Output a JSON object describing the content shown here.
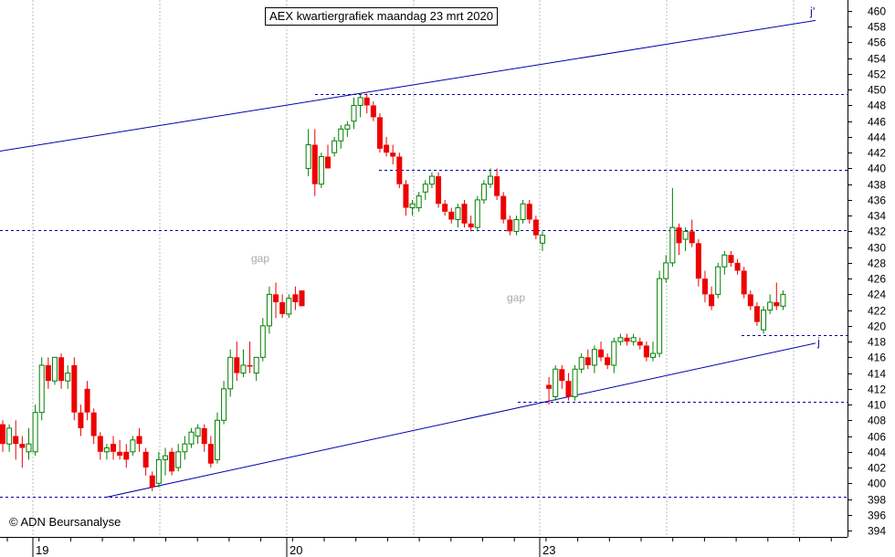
{
  "title": "AEX kwartiergrafiek maandag 23 mrt 2020",
  "copyright": "© ADN Beursanalyse",
  "annotations": {
    "gap_labels": [
      "gap",
      "gap"
    ],
    "upper_trendline_label": "j'",
    "lower_trendline_label": "j"
  },
  "colors": {
    "up_candle": "#008000",
    "down_candle": "#ee0000",
    "trendline": "#0000aa",
    "support_resistance": "#0000aa",
    "grid": "#bbbbbb"
  },
  "chart_data": {
    "type": "candlestick",
    "title": "AEX kwartiergrafiek maandag 23 mrt 2020",
    "y_axis": {
      "side": "right",
      "min": 394,
      "max": 460,
      "tick_step": 2
    },
    "x_tick_labels": [
      "19",
      "20",
      "23"
    ],
    "grid": true,
    "horizontal_levels": [
      449.5,
      439.8,
      432.2,
      418.8,
      410.4,
      398.3
    ],
    "trendlines": [
      {
        "label": "j'",
        "from": [
          0,
          442.2
        ],
        "to": [
          893,
          458.8
        ]
      },
      {
        "label": "j",
        "from": [
          115,
          398.2
        ],
        "to": [
          893,
          417.8
        ]
      }
    ],
    "candles": [
      {
        "i": 0,
        "o": 407.5,
        "h": 408,
        "l": 404,
        "c": 405,
        "dir": "down"
      },
      {
        "i": 1,
        "o": 405,
        "h": 407.5,
        "l": 404,
        "c": 407,
        "dir": "up"
      },
      {
        "i": 2,
        "o": 406,
        "h": 408,
        "l": 403,
        "c": 405,
        "dir": "down"
      },
      {
        "i": 3,
        "o": 405,
        "h": 406,
        "l": 402,
        "c": 404.5,
        "dir": "down"
      },
      {
        "i": 4,
        "o": 404,
        "h": 407,
        "l": 403,
        "c": 405,
        "dir": "up"
      },
      {
        "i": 5,
        "o": 404,
        "h": 410,
        "l": 403.5,
        "c": 409,
        "dir": "up"
      },
      {
        "i": 6,
        "o": 409,
        "h": 416,
        "l": 408,
        "c": 415,
        "dir": "up"
      },
      {
        "i": 7,
        "o": 415,
        "h": 416,
        "l": 412,
        "c": 413,
        "dir": "down"
      },
      {
        "i": 8,
        "o": 413,
        "h": 416,
        "l": 412.5,
        "c": 416,
        "dir": "up"
      },
      {
        "i": 9,
        "o": 416,
        "h": 416.5,
        "l": 412,
        "c": 413,
        "dir": "down"
      },
      {
        "i": 10,
        "o": 413,
        "h": 415,
        "l": 412,
        "c": 414,
        "dir": "up"
      },
      {
        "i": 11,
        "o": 415,
        "h": 416,
        "l": 408,
        "c": 409,
        "dir": "down"
      },
      {
        "i": 12,
        "o": 409,
        "h": 410,
        "l": 406,
        "c": 407,
        "dir": "down"
      },
      {
        "i": 13,
        "o": 412,
        "h": 413,
        "l": 408,
        "c": 409,
        "dir": "down"
      },
      {
        "i": 14,
        "o": 409,
        "h": 409.5,
        "l": 405,
        "c": 406,
        "dir": "down"
      },
      {
        "i": 15,
        "o": 406,
        "h": 406.5,
        "l": 403,
        "c": 404,
        "dir": "down"
      },
      {
        "i": 16,
        "o": 404,
        "h": 405,
        "l": 403,
        "c": 404.5,
        "dir": "up"
      },
      {
        "i": 17,
        "o": 405,
        "h": 406,
        "l": 403,
        "c": 404,
        "dir": "down"
      },
      {
        "i": 18,
        "o": 404,
        "h": 405.5,
        "l": 403,
        "c": 403.5,
        "dir": "down"
      },
      {
        "i": 19,
        "o": 404,
        "h": 405,
        "l": 402,
        "c": 403,
        "dir": "down"
      },
      {
        "i": 20,
        "o": 404,
        "h": 406,
        "l": 403.5,
        "c": 405.5,
        "dir": "up"
      },
      {
        "i": 21,
        "o": 406,
        "h": 407,
        "l": 404,
        "c": 405,
        "dir": "down"
      },
      {
        "i": 22,
        "o": 404,
        "h": 404.5,
        "l": 401,
        "c": 402,
        "dir": "down"
      },
      {
        "i": 23,
        "o": 401,
        "h": 401.5,
        "l": 399,
        "c": 399.5,
        "dir": "down"
      },
      {
        "i": 24,
        "o": 400,
        "h": 404,
        "l": 399.5,
        "c": 403,
        "dir": "up"
      },
      {
        "i": 25,
        "o": 403,
        "h": 404.5,
        "l": 401,
        "c": 403.5,
        "dir": "up"
      },
      {
        "i": 26,
        "o": 404,
        "h": 404.5,
        "l": 401,
        "c": 401.5,
        "dir": "down"
      },
      {
        "i": 27,
        "o": 402,
        "h": 405,
        "l": 401.5,
        "c": 404,
        "dir": "up"
      },
      {
        "i": 28,
        "o": 404,
        "h": 406,
        "l": 403,
        "c": 405,
        "dir": "up"
      },
      {
        "i": 29,
        "o": 405,
        "h": 407,
        "l": 404.5,
        "c": 406.5,
        "dir": "up"
      },
      {
        "i": 30,
        "o": 406,
        "h": 407.5,
        "l": 405,
        "c": 407,
        "dir": "up"
      },
      {
        "i": 31,
        "o": 407,
        "h": 407.5,
        "l": 404,
        "c": 405,
        "dir": "down"
      },
      {
        "i": 32,
        "o": 405,
        "h": 406,
        "l": 402,
        "c": 402.5,
        "dir": "down"
      },
      {
        "i": 33,
        "o": 403,
        "h": 409,
        "l": 402.5,
        "c": 408,
        "dir": "up"
      },
      {
        "i": 34,
        "o": 408,
        "h": 413,
        "l": 407.5,
        "c": 412,
        "dir": "up"
      },
      {
        "i": 35,
        "o": 412,
        "h": 417,
        "l": 411,
        "c": 416,
        "dir": "up"
      },
      {
        "i": 36,
        "o": 416,
        "h": 418,
        "l": 413,
        "c": 414,
        "dir": "down"
      },
      {
        "i": 37,
        "o": 414,
        "h": 417,
        "l": 413.5,
        "c": 415,
        "dir": "up"
      },
      {
        "i": 38,
        "o": 415,
        "h": 418,
        "l": 414,
        "c": 415,
        "dir": "down"
      },
      {
        "i": 39,
        "o": 414,
        "h": 416,
        "l": 413,
        "c": 416,
        "dir": "up"
      },
      {
        "i": 40,
        "o": 416,
        "h": 421,
        "l": 415.5,
        "c": 420,
        "dir": "up"
      },
      {
        "i": 41,
        "o": 420,
        "h": 425,
        "l": 419,
        "c": 424,
        "dir": "up"
      },
      {
        "i": 42,
        "o": 424,
        "h": 425.5,
        "l": 421,
        "c": 423,
        "dir": "down"
      },
      {
        "i": 43,
        "o": 423,
        "h": 424,
        "l": 421,
        "c": 421.5,
        "dir": "down"
      },
      {
        "i": 44,
        "o": 421.5,
        "h": 424,
        "l": 421,
        "c": 423.5,
        "dir": "up"
      },
      {
        "i": 45,
        "o": 424,
        "h": 425,
        "l": 422,
        "c": 423,
        "dir": "down"
      },
      {
        "i": 46,
        "o": 424.5,
        "h": 424.5,
        "l": 422.5,
        "c": 422.5,
        "dir": "down"
      },
      {
        "i": 47,
        "o": 440,
        "h": 445,
        "l": 439,
        "c": 443,
        "dir": "up"
      },
      {
        "i": 48,
        "o": 443,
        "h": 445,
        "l": 436.5,
        "c": 438,
        "dir": "down"
      },
      {
        "i": 49,
        "o": 438,
        "h": 442,
        "l": 437.5,
        "c": 441.5,
        "dir": "up"
      },
      {
        "i": 50,
        "o": 441.5,
        "h": 443,
        "l": 440,
        "c": 440,
        "dir": "down"
      },
      {
        "i": 51,
        "o": 442,
        "h": 444,
        "l": 441.5,
        "c": 443.5,
        "dir": "up"
      },
      {
        "i": 52,
        "o": 443.5,
        "h": 445.5,
        "l": 442.5,
        "c": 445,
        "dir": "up"
      },
      {
        "i": 53,
        "o": 445,
        "h": 446,
        "l": 444,
        "c": 445.5,
        "dir": "up"
      },
      {
        "i": 54,
        "o": 446,
        "h": 449,
        "l": 445,
        "c": 448,
        "dir": "up"
      },
      {
        "i": 55,
        "o": 448,
        "h": 449.5,
        "l": 446.5,
        "c": 449,
        "dir": "up"
      },
      {
        "i": 56,
        "o": 449,
        "h": 449.5,
        "l": 447,
        "c": 448,
        "dir": "down"
      },
      {
        "i": 57,
        "o": 448,
        "h": 448.5,
        "l": 446,
        "c": 446.5,
        "dir": "down"
      },
      {
        "i": 58,
        "o": 446.5,
        "h": 447,
        "l": 442,
        "c": 442.5,
        "dir": "down"
      },
      {
        "i": 59,
        "o": 443,
        "h": 444,
        "l": 441.5,
        "c": 442,
        "dir": "down"
      },
      {
        "i": 60,
        "o": 442,
        "h": 443,
        "l": 440.5,
        "c": 441.5,
        "dir": "down"
      },
      {
        "i": 61,
        "o": 441.5,
        "h": 442,
        "l": 437.5,
        "c": 438,
        "dir": "down"
      },
      {
        "i": 62,
        "o": 438,
        "h": 438.5,
        "l": 434,
        "c": 435,
        "dir": "down"
      },
      {
        "i": 63,
        "o": 435,
        "h": 436,
        "l": 434,
        "c": 435.5,
        "dir": "up"
      },
      {
        "i": 64,
        "o": 435,
        "h": 437,
        "l": 434.5,
        "c": 436.5,
        "dir": "up"
      },
      {
        "i": 65,
        "o": 437,
        "h": 438.5,
        "l": 436,
        "c": 438,
        "dir": "up"
      },
      {
        "i": 66,
        "o": 438,
        "h": 439.5,
        "l": 437.5,
        "c": 439,
        "dir": "up"
      },
      {
        "i": 67,
        "o": 439,
        "h": 439.5,
        "l": 435,
        "c": 435.5,
        "dir": "down"
      },
      {
        "i": 68,
        "o": 435.5,
        "h": 436,
        "l": 434,
        "c": 434.5,
        "dir": "down"
      },
      {
        "i": 69,
        "o": 434.5,
        "h": 435,
        "l": 433,
        "c": 433.5,
        "dir": "down"
      },
      {
        "i": 70,
        "o": 433.5,
        "h": 435.5,
        "l": 432.5,
        "c": 435,
        "dir": "up"
      },
      {
        "i": 71,
        "o": 435.5,
        "h": 436,
        "l": 432.5,
        "c": 433,
        "dir": "down"
      },
      {
        "i": 72,
        "o": 433,
        "h": 434,
        "l": 432,
        "c": 432.5,
        "dir": "down"
      },
      {
        "i": 73,
        "o": 432.5,
        "h": 436.5,
        "l": 432,
        "c": 436,
        "dir": "up"
      },
      {
        "i": 74,
        "o": 436,
        "h": 438.5,
        "l": 435.5,
        "c": 438,
        "dir": "up"
      },
      {
        "i": 75,
        "o": 438,
        "h": 440,
        "l": 437.5,
        "c": 439,
        "dir": "up"
      },
      {
        "i": 76,
        "o": 439,
        "h": 440,
        "l": 436,
        "c": 436.5,
        "dir": "down"
      },
      {
        "i": 77,
        "o": 436.5,
        "h": 437,
        "l": 433,
        "c": 433.5,
        "dir": "down"
      },
      {
        "i": 78,
        "o": 433.5,
        "h": 434,
        "l": 431.5,
        "c": 432,
        "dir": "down"
      },
      {
        "i": 79,
        "o": 432,
        "h": 434,
        "l": 431.5,
        "c": 433.5,
        "dir": "up"
      },
      {
        "i": 80,
        "o": 433.5,
        "h": 436,
        "l": 433,
        "c": 435.5,
        "dir": "up"
      },
      {
        "i": 81,
        "o": 435.5,
        "h": 436,
        "l": 433,
        "c": 433.5,
        "dir": "down"
      },
      {
        "i": 82,
        "o": 433.5,
        "h": 434,
        "l": 431,
        "c": 431.5,
        "dir": "down"
      },
      {
        "i": 83,
        "o": 430.5,
        "h": 432,
        "l": 429.5,
        "c": 431.5,
        "dir": "up"
      },
      {
        "i": 84,
        "o": 412,
        "h": 413.5,
        "l": 410,
        "c": 412.5,
        "dir": "down"
      },
      {
        "i": 85,
        "o": 411,
        "h": 415,
        "l": 410.5,
        "c": 414.5,
        "dir": "up"
      },
      {
        "i": 86,
        "o": 414.5,
        "h": 415,
        "l": 412,
        "c": 413,
        "dir": "down"
      },
      {
        "i": 87,
        "o": 413,
        "h": 414,
        "l": 410.5,
        "c": 411,
        "dir": "down"
      },
      {
        "i": 88,
        "o": 411,
        "h": 415,
        "l": 410.5,
        "c": 414.5,
        "dir": "up"
      },
      {
        "i": 89,
        "o": 414.5,
        "h": 416.5,
        "l": 414,
        "c": 416,
        "dir": "up"
      },
      {
        "i": 90,
        "o": 416,
        "h": 417,
        "l": 414.5,
        "c": 415,
        "dir": "down"
      },
      {
        "i": 91,
        "o": 415,
        "h": 417.5,
        "l": 414,
        "c": 417,
        "dir": "up"
      },
      {
        "i": 92,
        "o": 417,
        "h": 418,
        "l": 415.5,
        "c": 416,
        "dir": "down"
      },
      {
        "i": 93,
        "o": 416,
        "h": 416.5,
        "l": 414.5,
        "c": 415,
        "dir": "down"
      },
      {
        "i": 94,
        "o": 415,
        "h": 418.5,
        "l": 414,
        "c": 418,
        "dir": "up"
      },
      {
        "i": 95,
        "o": 418,
        "h": 419,
        "l": 417.5,
        "c": 418.5,
        "dir": "up"
      },
      {
        "i": 96,
        "o": 418.5,
        "h": 419,
        "l": 417.5,
        "c": 418,
        "dir": "down"
      },
      {
        "i": 97,
        "o": 418,
        "h": 419,
        "l": 417.5,
        "c": 418.5,
        "dir": "up"
      },
      {
        "i": 98,
        "o": 418,
        "h": 418.5,
        "l": 417,
        "c": 417.5,
        "dir": "down"
      },
      {
        "i": 99,
        "o": 417.5,
        "h": 418,
        "l": 415.5,
        "c": 416,
        "dir": "down"
      },
      {
        "i": 100,
        "o": 416,
        "h": 418,
        "l": 415.5,
        "c": 416.5,
        "dir": "up"
      },
      {
        "i": 101,
        "o": 416.5,
        "h": 427,
        "l": 416,
        "c": 426,
        "dir": "up"
      },
      {
        "i": 102,
        "o": 426,
        "h": 429,
        "l": 425.5,
        "c": 428,
        "dir": "up"
      },
      {
        "i": 103,
        "o": 428,
        "h": 437.5,
        "l": 427.5,
        "c": 432.5,
        "dir": "up"
      },
      {
        "i": 104,
        "o": 432.5,
        "h": 433,
        "l": 429,
        "c": 430.5,
        "dir": "down"
      },
      {
        "i": 105,
        "o": 431,
        "h": 432.5,
        "l": 429.5,
        "c": 432,
        "dir": "up"
      },
      {
        "i": 106,
        "o": 432,
        "h": 433.5,
        "l": 430,
        "c": 430.5,
        "dir": "down"
      },
      {
        "i": 107,
        "o": 430.5,
        "h": 431,
        "l": 425,
        "c": 426,
        "dir": "down"
      },
      {
        "i": 108,
        "o": 426,
        "h": 427,
        "l": 423,
        "c": 424,
        "dir": "down"
      },
      {
        "i": 109,
        "o": 424,
        "h": 425,
        "l": 422,
        "c": 422.5,
        "dir": "down"
      },
      {
        "i": 110,
        "o": 424,
        "h": 428,
        "l": 423.5,
        "c": 427.5,
        "dir": "up"
      },
      {
        "i": 111,
        "o": 427.5,
        "h": 429.5,
        "l": 426.5,
        "c": 429,
        "dir": "up"
      },
      {
        "i": 112,
        "o": 429,
        "h": 429.5,
        "l": 427.5,
        "c": 428,
        "dir": "down"
      },
      {
        "i": 113,
        "o": 428,
        "h": 428.5,
        "l": 426.5,
        "c": 427,
        "dir": "down"
      },
      {
        "i": 114,
        "o": 427,
        "h": 427.5,
        "l": 423.5,
        "c": 424,
        "dir": "down"
      },
      {
        "i": 115,
        "o": 424,
        "h": 424.5,
        "l": 422,
        "c": 422.5,
        "dir": "down"
      },
      {
        "i": 116,
        "o": 422.5,
        "h": 423,
        "l": 420,
        "c": 420.5,
        "dir": "down"
      },
      {
        "i": 117,
        "o": 419.5,
        "h": 422.5,
        "l": 419,
        "c": 422,
        "dir": "up"
      },
      {
        "i": 118,
        "o": 422,
        "h": 424,
        "l": 421.5,
        "c": 423,
        "dir": "up"
      },
      {
        "i": 119,
        "o": 423,
        "h": 425.5,
        "l": 422,
        "c": 422.5,
        "dir": "down"
      },
      {
        "i": 120,
        "o": 422.5,
        "h": 424.5,
        "l": 422,
        "c": 424,
        "dir": "up"
      }
    ]
  }
}
